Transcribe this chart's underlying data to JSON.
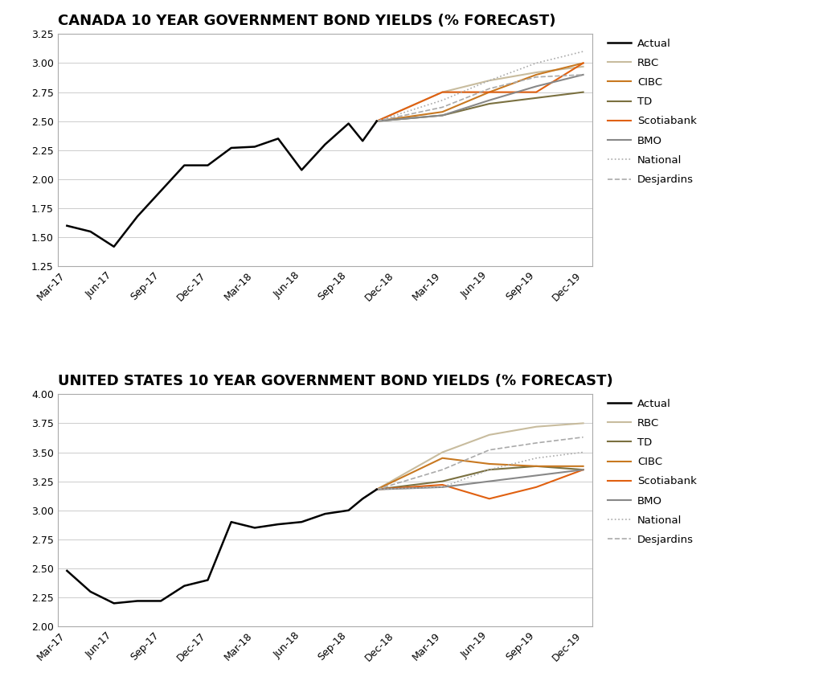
{
  "canada_title": "CANADA 10 YEAR GOVERNMENT BOND YIELDS (% FORECAST)",
  "us_title": "UNITED STATES 10 YEAR GOVERNMENT BOND YIELDS (% FORECAST)",
  "x_labels": [
    "Mar-17",
    "Jun-17",
    "Sep-17",
    "Dec-17",
    "Mar-18",
    "Jun-18",
    "Sep-18",
    "Dec-18",
    "Mar-19",
    "Jun-19",
    "Sep-19",
    "Dec-19"
  ],
  "canada": {
    "actual": {
      "x": [
        0,
        0.5,
        1,
        1.5,
        2,
        2.5,
        3,
        3.5,
        4,
        4.5,
        5,
        5.5,
        6,
        6.3,
        6.6
      ],
      "y": [
        1.6,
        1.55,
        1.42,
        1.68,
        1.9,
        2.12,
        2.12,
        2.27,
        2.28,
        2.35,
        2.08,
        2.3,
        2.48,
        2.33,
        2.5
      ]
    },
    "RBC": {
      "x": [
        6.6,
        8,
        9,
        10,
        11
      ],
      "y": [
        2.5,
        2.75,
        2.85,
        2.92,
        2.97
      ],
      "color": "#c8bc9e",
      "style": "solid"
    },
    "CIBC": {
      "x": [
        6.6,
        8,
        9,
        10,
        11
      ],
      "y": [
        2.5,
        2.58,
        2.75,
        2.9,
        3.0
      ],
      "color": "#c87820",
      "style": "solid"
    },
    "TD": {
      "x": [
        6.6,
        8,
        9,
        10,
        11
      ],
      "y": [
        2.5,
        2.55,
        2.65,
        2.7,
        2.75
      ],
      "color": "#7a7040",
      "style": "solid"
    },
    "Scotiabank": {
      "x": [
        6.6,
        8,
        9,
        10,
        11
      ],
      "y": [
        2.5,
        2.75,
        2.75,
        2.75,
        3.0
      ],
      "color": "#e06010",
      "style": "solid"
    },
    "BMO": {
      "x": [
        6.6,
        8,
        9,
        10,
        11
      ],
      "y": [
        2.5,
        2.55,
        2.68,
        2.8,
        2.9
      ],
      "color": "#888888",
      "style": "solid"
    },
    "National": {
      "x": [
        6.6,
        8,
        9,
        10,
        11
      ],
      "y": [
        2.5,
        2.68,
        2.85,
        3.0,
        3.1
      ],
      "color": "#aaaaaa",
      "style": "dotted"
    },
    "Desjardins": {
      "x": [
        6.6,
        8,
        9,
        10,
        11
      ],
      "y": [
        2.5,
        2.62,
        2.78,
        2.88,
        2.9
      ],
      "color": "#aaaaaa",
      "style": "dashed"
    }
  },
  "canada_legend_order": [
    "Actual",
    "RBC",
    "CIBC",
    "TD",
    "Scotiabank",
    "BMO",
    "National",
    "Desjardins"
  ],
  "us": {
    "actual": {
      "x": [
        0,
        0.5,
        1,
        1.5,
        2,
        2.5,
        3,
        3.5,
        4,
        4.5,
        5,
        5.5,
        6,
        6.3,
        6.6
      ],
      "y": [
        2.48,
        2.3,
        2.2,
        2.22,
        2.22,
        2.35,
        2.4,
        2.9,
        2.85,
        2.88,
        2.9,
        2.97,
        3.0,
        3.1,
        3.18
      ]
    },
    "RBC": {
      "x": [
        6.6,
        8,
        9,
        10,
        11
      ],
      "y": [
        3.18,
        3.5,
        3.65,
        3.72,
        3.75
      ],
      "color": "#c8bc9e",
      "style": "solid"
    },
    "TD": {
      "x": [
        6.6,
        8,
        9,
        10,
        11
      ],
      "y": [
        3.18,
        3.25,
        3.35,
        3.38,
        3.35
      ],
      "color": "#7a7040",
      "style": "solid"
    },
    "CIBC": {
      "x": [
        6.6,
        8,
        9,
        10,
        11
      ],
      "y": [
        3.18,
        3.45,
        3.4,
        3.38,
        3.38
      ],
      "color": "#c87820",
      "style": "solid"
    },
    "Scotiabank": {
      "x": [
        6.6,
        8,
        9,
        10,
        11
      ],
      "y": [
        3.18,
        3.22,
        3.1,
        3.2,
        3.35
      ],
      "color": "#e06010",
      "style": "solid"
    },
    "BMO": {
      "x": [
        6.6,
        8,
        9,
        10,
        11
      ],
      "y": [
        3.18,
        3.2,
        3.25,
        3.3,
        3.35
      ],
      "color": "#888888",
      "style": "solid"
    },
    "National": {
      "x": [
        6.6,
        8,
        9,
        10,
        11
      ],
      "y": [
        3.18,
        3.2,
        3.35,
        3.45,
        3.5
      ],
      "color": "#aaaaaa",
      "style": "dotted"
    },
    "Desjardins": {
      "x": [
        6.6,
        8,
        9,
        10,
        11
      ],
      "y": [
        3.18,
        3.35,
        3.52,
        3.58,
        3.63
      ],
      "color": "#aaaaaa",
      "style": "dashed"
    }
  },
  "us_legend_order": [
    "Actual",
    "RBC",
    "TD",
    "CIBC",
    "Scotiabank",
    "BMO",
    "National",
    "Desjardins"
  ],
  "canada_ylim": [
    1.25,
    3.25
  ],
  "canada_yticks": [
    1.25,
    1.5,
    1.75,
    2.0,
    2.25,
    2.5,
    2.75,
    3.0,
    3.25
  ],
  "us_ylim": [
    2.0,
    4.0
  ],
  "us_yticks": [
    2.0,
    2.25,
    2.5,
    2.75,
    3.0,
    3.25,
    3.5,
    3.75,
    4.0
  ],
  "bg_color": "#ffffff",
  "plot_bg_color": "#ffffff",
  "grid_color": "#cccccc",
  "title_fontsize": 13,
  "tick_fontsize": 9
}
